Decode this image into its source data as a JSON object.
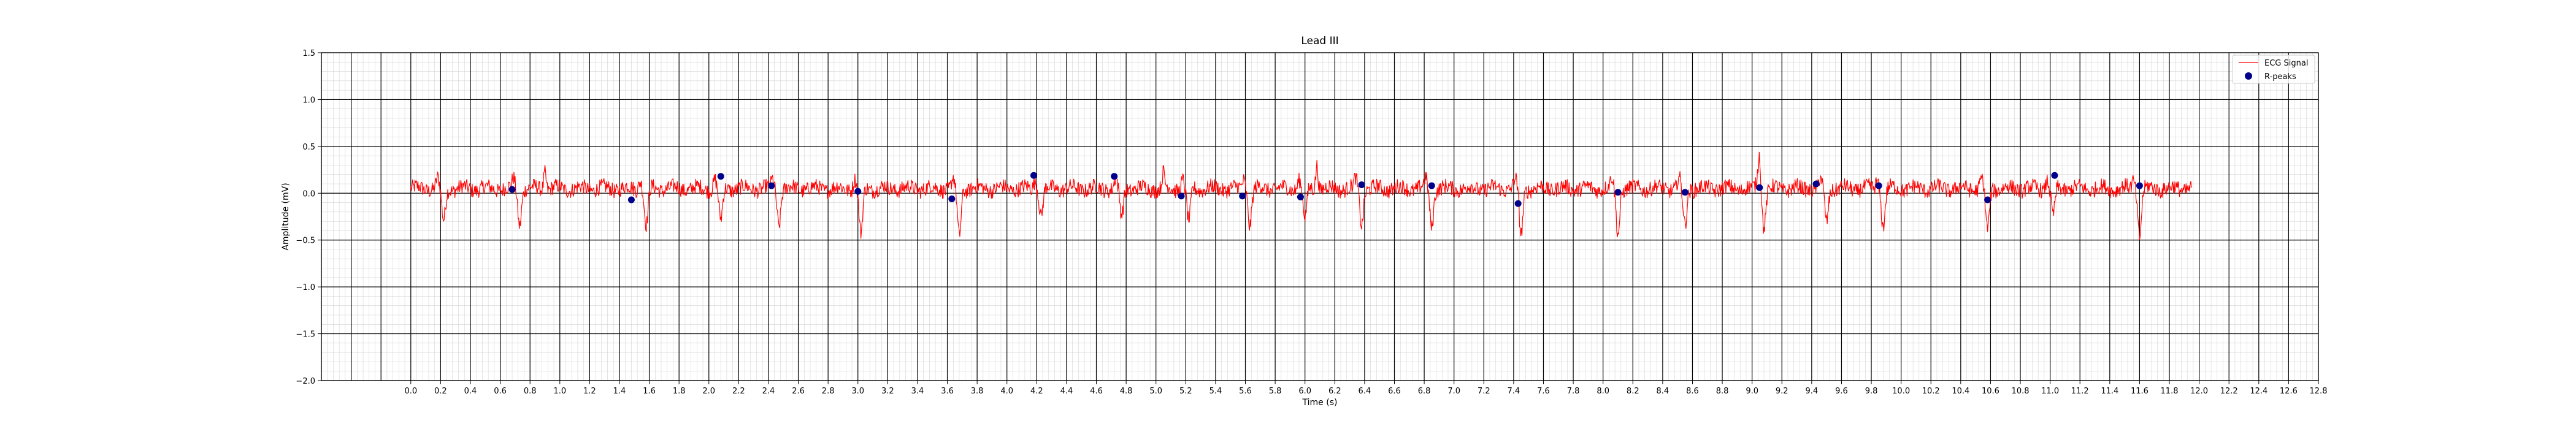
{
  "chart_data": {
    "type": "line",
    "title": "Lead III",
    "xlabel": "Time (s)",
    "ylabel": "Amplitude (mV)",
    "xlim": [
      -0.6,
      12.8
    ],
    "ylim": [
      -2.0,
      1.5
    ],
    "x_ticks": [
      "0.0",
      "0.2",
      "0.4",
      "0.6",
      "0.8",
      "1.0",
      "1.2",
      "1.4",
      "1.6",
      "1.8",
      "2.0",
      "2.2",
      "2.4",
      "2.6",
      "2.8",
      "3.0",
      "3.2",
      "3.4",
      "3.6",
      "3.8",
      "4.0",
      "4.2",
      "4.4",
      "4.6",
      "4.8",
      "5.0",
      "5.2",
      "5.4",
      "5.6",
      "5.8",
      "6.0",
      "6.2",
      "6.4",
      "6.6",
      "6.8",
      "7.0",
      "7.2",
      "7.4",
      "7.6",
      "7.8",
      "8.0",
      "8.2",
      "8.4",
      "8.6",
      "8.8",
      "9.0",
      "9.2",
      "9.4",
      "9.6",
      "9.8",
      "10.0",
      "10.2",
      "10.4",
      "10.6",
      "10.8",
      "11.0",
      "11.2",
      "11.4",
      "11.6",
      "11.8",
      "12.0",
      "12.2",
      "12.4",
      "12.6",
      "12.8"
    ],
    "y_ticks": [
      "−2.0",
      "−1.5",
      "−1.0",
      "−0.5",
      "0.0",
      "0.5",
      "1.0",
      "1.5"
    ],
    "grid": {
      "major_x": 0.2,
      "minor_x": 0.04,
      "major_y": 0.5,
      "minor_y": 0.1
    },
    "legend_position": "top-right",
    "series": [
      {
        "name": "ECG Signal",
        "kind": "line",
        "color": "#ff0000",
        "x_start": 0.0,
        "x_end": 11.95,
        "baseline": 0.05,
        "noise_amplitude": 0.08,
        "deflections": [
          {
            "t": 0.22,
            "depth": -0.35
          },
          {
            "t": 0.73,
            "depth": -0.38
          },
          {
            "t": 1.58,
            "depth": -0.4
          },
          {
            "t": 2.08,
            "depth": -0.35
          },
          {
            "t": 2.47,
            "depth": -0.38
          },
          {
            "t": 3.02,
            "depth": -0.5
          },
          {
            "t": 3.68,
            "depth": -0.52
          },
          {
            "t": 4.23,
            "depth": -0.28
          },
          {
            "t": 4.77,
            "depth": -0.3
          },
          {
            "t": 5.22,
            "depth": -0.37
          },
          {
            "t": 5.63,
            "depth": -0.38
          },
          {
            "t": 6.0,
            "depth": -0.32
          },
          {
            "t": 6.38,
            "depth": -0.38
          },
          {
            "t": 6.85,
            "depth": -0.4
          },
          {
            "t": 7.45,
            "depth": -0.5
          },
          {
            "t": 8.1,
            "depth": -0.48
          },
          {
            "t": 8.55,
            "depth": -0.4
          },
          {
            "t": 9.08,
            "depth": -0.4
          },
          {
            "t": 9.5,
            "depth": -0.35
          },
          {
            "t": 9.88,
            "depth": -0.4
          },
          {
            "t": 10.58,
            "depth": -0.45
          },
          {
            "t": 11.02,
            "depth": -0.3
          },
          {
            "t": 11.6,
            "depth": -0.5
          }
        ],
        "spikes": [
          {
            "t": 0.9,
            "height": 0.2
          },
          {
            "t": 5.05,
            "height": 0.16
          },
          {
            "t": 6.08,
            "height": 0.27
          },
          {
            "t": 9.05,
            "height": 0.32
          }
        ]
      },
      {
        "name": "R-peaks",
        "kind": "scatter",
        "color": "#00008b",
        "x": [
          0.68,
          1.48,
          2.08,
          2.42,
          3.0,
          3.63,
          4.18,
          4.72,
          5.17,
          5.58,
          5.97,
          6.38,
          6.85,
          7.43,
          8.1,
          8.55,
          9.05,
          9.43,
          9.85,
          10.58,
          11.03,
          11.6
        ],
        "y": [
          0.04,
          -0.07,
          0.18,
          0.08,
          0.02,
          -0.06,
          0.19,
          0.18,
          -0.03,
          -0.03,
          -0.04,
          0.09,
          0.08,
          -0.11,
          0.01,
          0.01,
          0.06,
          0.1,
          0.08,
          -0.07,
          0.19,
          0.08
        ]
      }
    ]
  }
}
